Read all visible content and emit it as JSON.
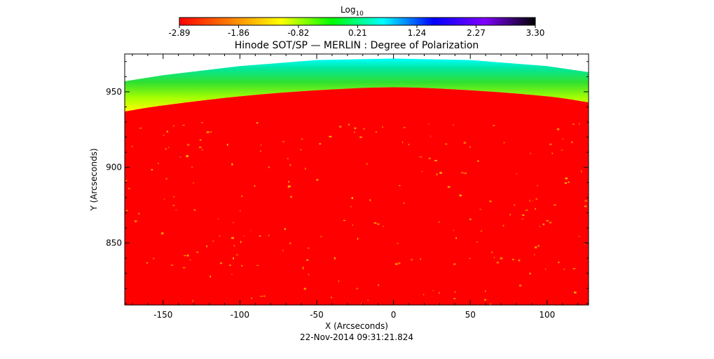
{
  "chart_data": {
    "type": "heatmap",
    "title": "Hinode SOT/SP — MERLIN : Degree of Polarization",
    "xlabel": "X (Arcseconds)",
    "ylabel": "Y (Arcseconds)",
    "timestamp": "22-Nov-2014 09:31:21.824",
    "xlim": [
      -175,
      127
    ],
    "ylim": [
      809,
      975
    ],
    "x_ticks": [
      -150,
      -100,
      -50,
      0,
      50,
      100
    ],
    "y_ticks": [
      850,
      900,
      950
    ],
    "grid": false,
    "colorbar": {
      "label": "Log",
      "label_subscript": "10",
      "placement": "top",
      "range": [
        -2.89,
        3.3
      ],
      "ticks": [
        "-2.89",
        "-1.86",
        "-0.82",
        "0.21",
        "1.24",
        "2.27",
        "3.30"
      ],
      "colormap": [
        "#ff0000",
        "#ff7f00",
        "#ffff00",
        "#00ff00",
        "#00ffff",
        "#0000ff",
        "#8000ff",
        "#000000"
      ]
    },
    "limb_boundary": {
      "x": [
        -175,
        -150,
        -100,
        -50,
        0,
        50,
        100,
        127
      ],
      "y": [
        937,
        941,
        947,
        951,
        953,
        951,
        947,
        943
      ]
    }
  }
}
